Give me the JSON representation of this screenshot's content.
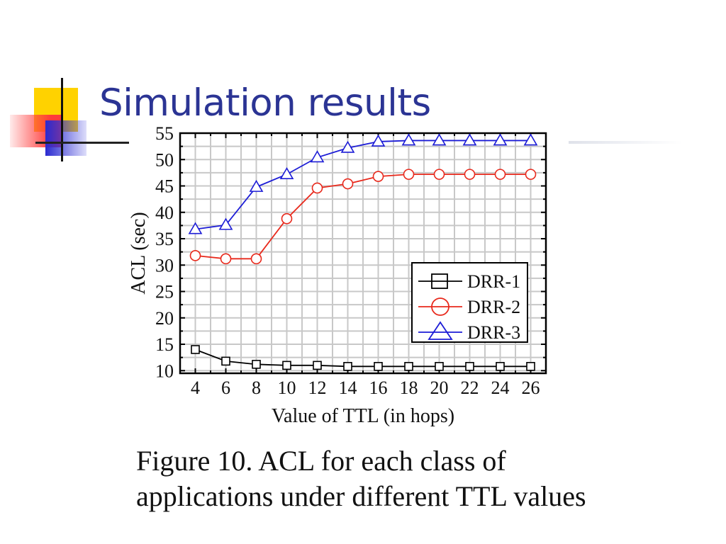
{
  "slide": {
    "title": "Simulation results",
    "caption": "Figure 10. ACL for each class of applications under different TTL values"
  },
  "chart_data": {
    "type": "line",
    "xlabel": "Value of TTL (in hops)",
    "ylabel": "ACL (sec)",
    "x": [
      4,
      6,
      8,
      10,
      12,
      14,
      16,
      18,
      20,
      22,
      24,
      26
    ],
    "xlim": [
      3,
      27
    ],
    "ylim": [
      9.5,
      55
    ],
    "xticks": [
      "4",
      "6",
      "8",
      "10",
      "12",
      "14",
      "16",
      "18",
      "20",
      "22",
      "24",
      "26"
    ],
    "yticks": [
      "10",
      "15",
      "20",
      "25",
      "30",
      "35",
      "40",
      "45",
      "50",
      "55"
    ],
    "grid": true,
    "legend": "center-right",
    "series": [
      {
        "name": "DRR-1",
        "marker": "square",
        "color": "#000000",
        "values": [
          14.0,
          11.8,
          11.2,
          11.0,
          11.0,
          10.8,
          10.8,
          10.8,
          10.8,
          10.8,
          10.8,
          10.8
        ]
      },
      {
        "name": "DRR-2",
        "marker": "circle",
        "color": "#e8291c",
        "values": [
          31.8,
          31.2,
          31.2,
          38.8,
          44.6,
          45.4,
          46.8,
          47.2,
          47.2,
          47.2,
          47.2,
          47.2
        ]
      },
      {
        "name": "DRR-3",
        "marker": "triangle",
        "color": "#1c1cd6",
        "values": [
          36.8,
          37.6,
          44.8,
          47.2,
          50.4,
          52.2,
          53.4,
          53.6,
          53.6,
          53.6,
          53.6,
          53.6
        ]
      }
    ]
  }
}
